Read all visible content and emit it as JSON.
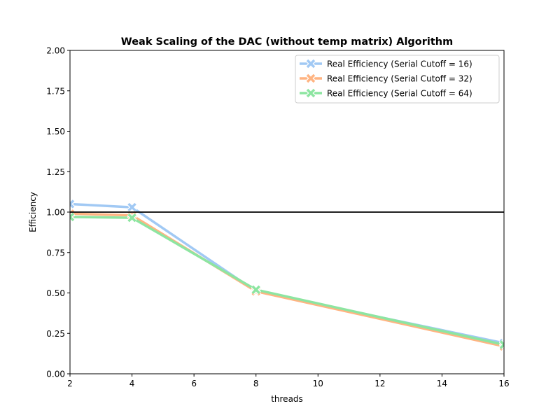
{
  "chart_data": {
    "type": "line",
    "title": "Weak Scaling of the DAC (without temp matrix) Algorithm",
    "xlabel": "threads",
    "ylabel": "Efficiency",
    "xlim": [
      2,
      16
    ],
    "ylim": [
      0,
      2
    ],
    "xticks": [
      2,
      4,
      6,
      8,
      10,
      12,
      14,
      16
    ],
    "yticks": [
      0,
      0.25,
      0.5,
      0.75,
      1.0,
      1.25,
      1.5,
      1.75,
      2.0
    ],
    "xtick_labels": [
      "2",
      "4",
      "6",
      "8",
      "10",
      "12",
      "14",
      "16"
    ],
    "ytick_labels": [
      "0.00",
      "0.25",
      "0.50",
      "0.75",
      "1.00",
      "1.25",
      "1.50",
      "1.75",
      "2.00"
    ],
    "grid": false,
    "legend_position": "top-right",
    "reference_line": 1.0,
    "reference_color": "#000000",
    "x": [
      2,
      4,
      8,
      16
    ],
    "series": [
      {
        "name": "Real Efficiency (Serial Cutoff = 16)",
        "values": [
          1.05,
          1.03,
          0.51,
          0.19
        ],
        "color": "#a1c9f4"
      },
      {
        "name": "Real Efficiency (Serial Cutoff = 32)",
        "values": [
          0.99,
          0.98,
          0.51,
          0.17
        ],
        "color": "#ffb482"
      },
      {
        "name": "Real Efficiency (Serial Cutoff = 64)",
        "values": [
          0.97,
          0.965,
          0.52,
          0.18
        ],
        "color": "#8de5a1"
      }
    ]
  }
}
